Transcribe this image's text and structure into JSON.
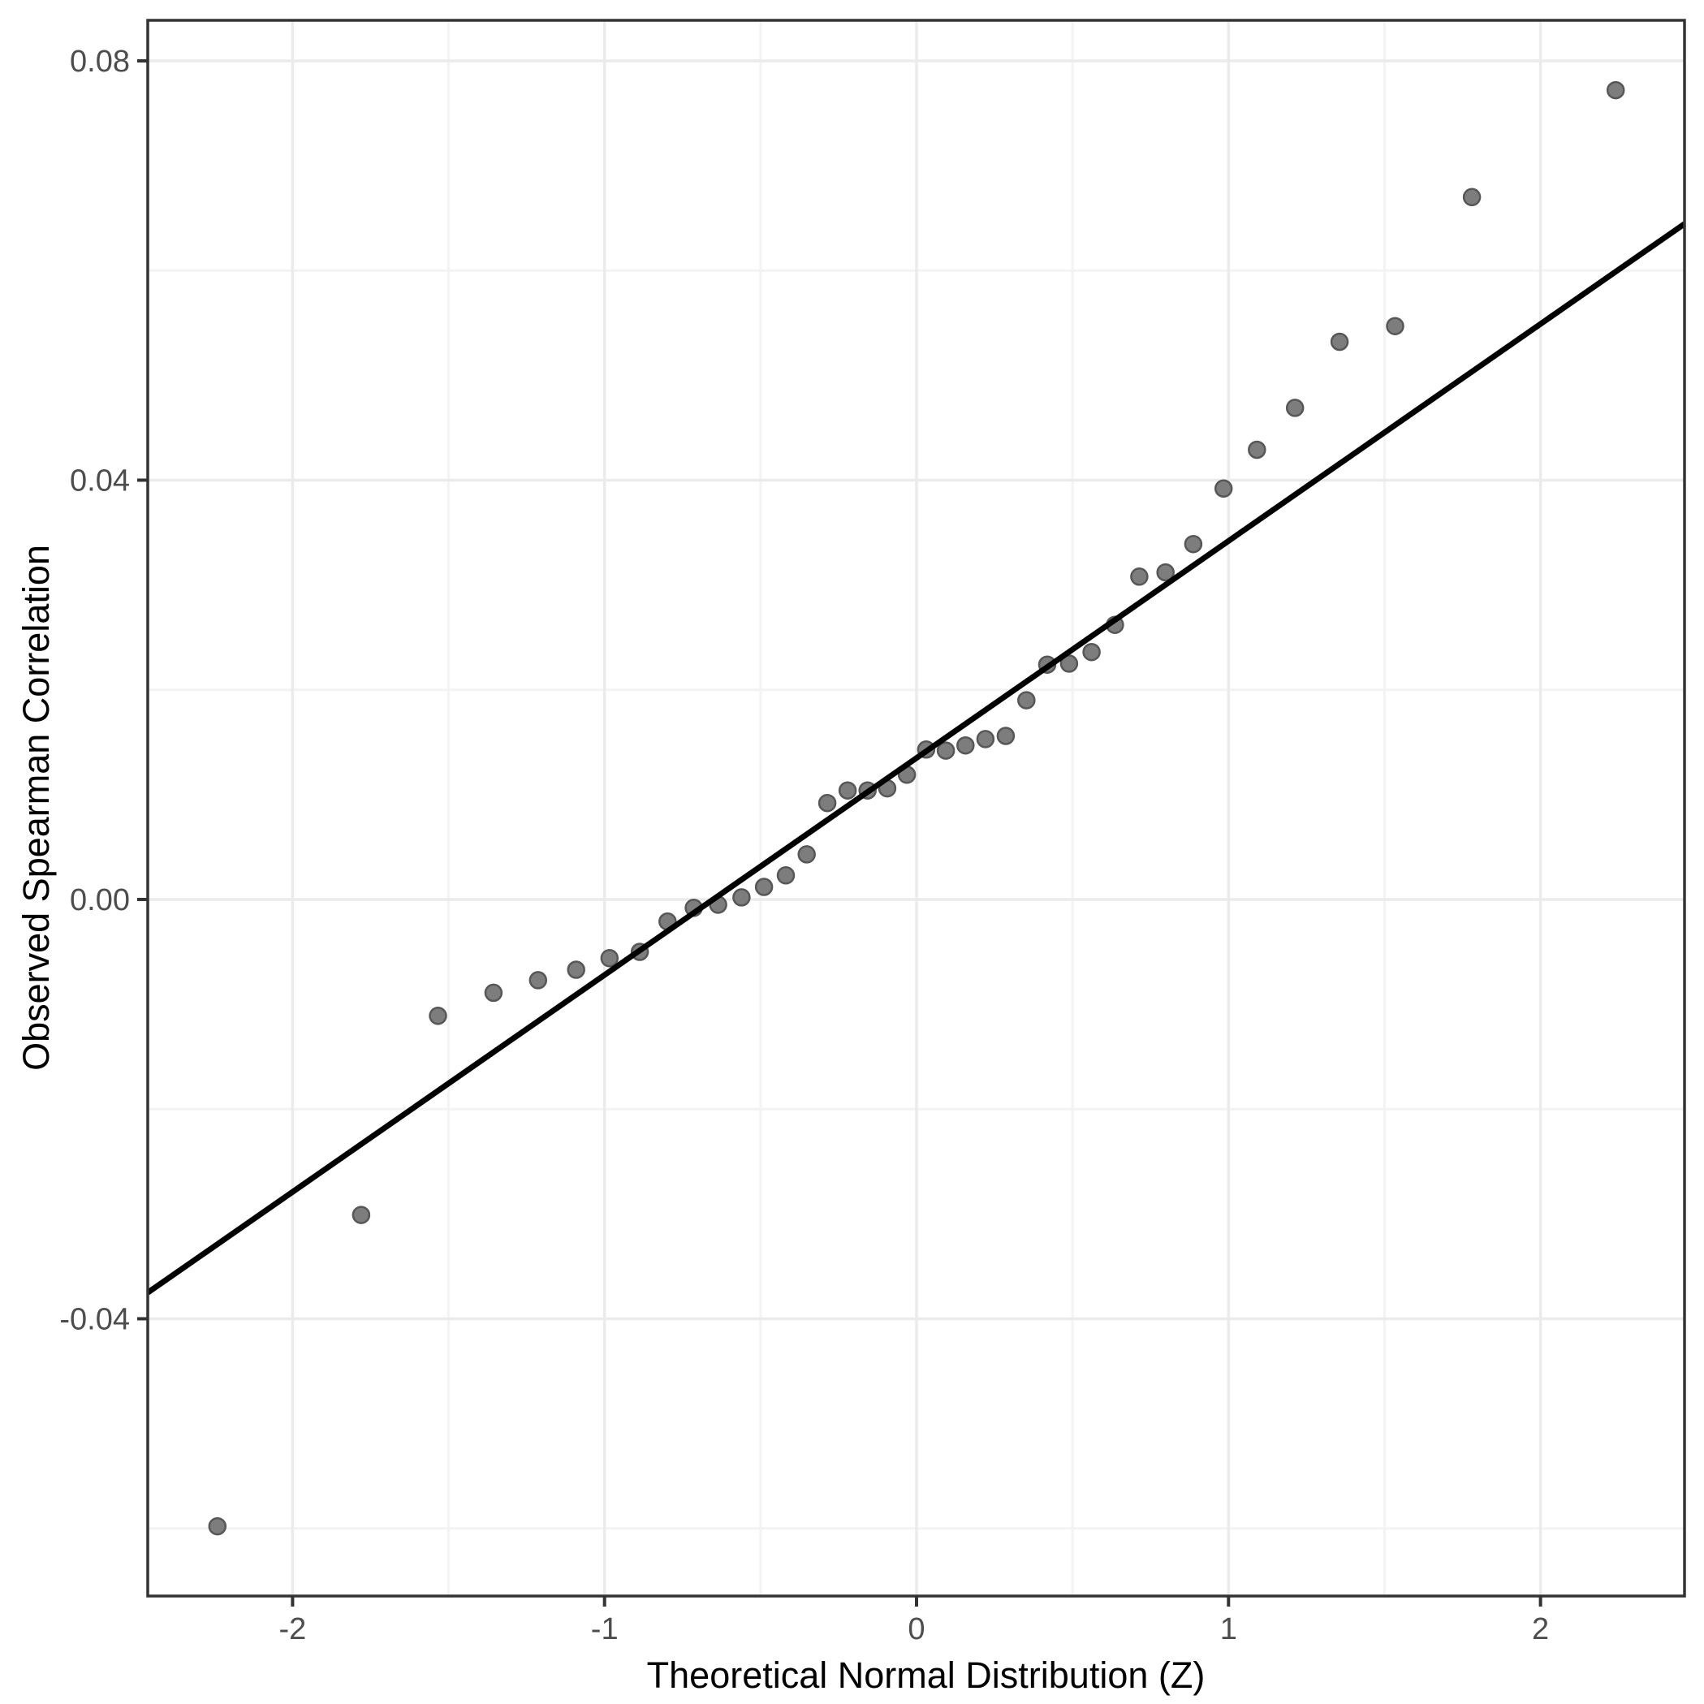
{
  "chart_data": {
    "type": "scatter",
    "title": "",
    "xlabel": "Theoretical Normal Distribution (Z)",
    "ylabel": "Observed Spearman Correlation",
    "xlim": [
      -2.4642,
      2.4616
    ],
    "ylim": [
      -0.06645,
      0.08387
    ],
    "x_ticks": [
      -2,
      -1,
      0,
      1,
      2
    ],
    "x_tick_labels": [
      "-2",
      "-1",
      "0",
      "1",
      "2"
    ],
    "y_ticks": [
      -0.04,
      0.0,
      0.04,
      0.08
    ],
    "y_tick_labels": [
      "-0.04",
      "0.00",
      "0.04",
      "0.08"
    ],
    "x_minor_gridlines": [
      -1.5,
      -0.5,
      0.5,
      1.5
    ],
    "y_minor_gridlines": [
      -0.06,
      -0.02,
      0.02,
      0.06
    ],
    "grid": true,
    "legend": "none",
    "series": [
      {
        "name": "observed-vs-theoretical-quantiles",
        "points": [
          [
            -2.241,
            -0.0598
          ],
          [
            -1.78,
            -0.0301
          ],
          [
            -1.534,
            -0.0111
          ],
          [
            -1.356,
            -0.0089
          ],
          [
            -1.213,
            -0.0077
          ],
          [
            -1.091,
            -0.0067
          ],
          [
            -0.984,
            -0.0056
          ],
          [
            -0.887,
            -0.005
          ],
          [
            -0.798,
            -0.0021
          ],
          [
            -0.714,
            -0.0008
          ],
          [
            -0.636,
            -0.0005
          ],
          [
            -0.561,
            0.0002
          ],
          [
            -0.489,
            0.0012
          ],
          [
            -0.419,
            0.0023
          ],
          [
            -0.352,
            0.0043
          ],
          [
            -0.286,
            0.0092
          ],
          [
            -0.221,
            0.0104
          ],
          [
            -0.157,
            0.0104
          ],
          [
            -0.094,
            0.0106
          ],
          [
            -0.031,
            0.0119
          ],
          [
            0.031,
            0.0143
          ],
          [
            0.094,
            0.0142
          ],
          [
            0.157,
            0.0147
          ],
          [
            0.221,
            0.0153
          ],
          [
            0.286,
            0.0156
          ],
          [
            0.352,
            0.019
          ],
          [
            0.419,
            0.0224
          ],
          [
            0.489,
            0.0225
          ],
          [
            0.561,
            0.0236
          ],
          [
            0.636,
            0.0262
          ],
          [
            0.714,
            0.0308
          ],
          [
            0.798,
            0.0312
          ],
          [
            0.887,
            0.0339
          ],
          [
            0.984,
            0.0392
          ],
          [
            1.091,
            0.0429
          ],
          [
            1.213,
            0.0469
          ],
          [
            1.356,
            0.0532
          ],
          [
            1.534,
            0.0547
          ],
          [
            1.78,
            0.067
          ],
          [
            2.241,
            0.0772
          ]
        ]
      }
    ],
    "reference_line": {
      "name": "qq-line",
      "intercept": 0.0135,
      "slope": 0.0207
    },
    "colors": {
      "background": "#ffffff",
      "panel_background": "#ffffff",
      "panel_border": "#333333",
      "grid_major": "#ebebeb",
      "grid_minor": "#f3f3f3",
      "point_fill": "#7d7d7d",
      "point_stroke": "#575757",
      "reference_line": "#000000",
      "tick_mark": "#333333",
      "tick_label": "#4d4d4d",
      "axis_title": "#000000"
    }
  }
}
